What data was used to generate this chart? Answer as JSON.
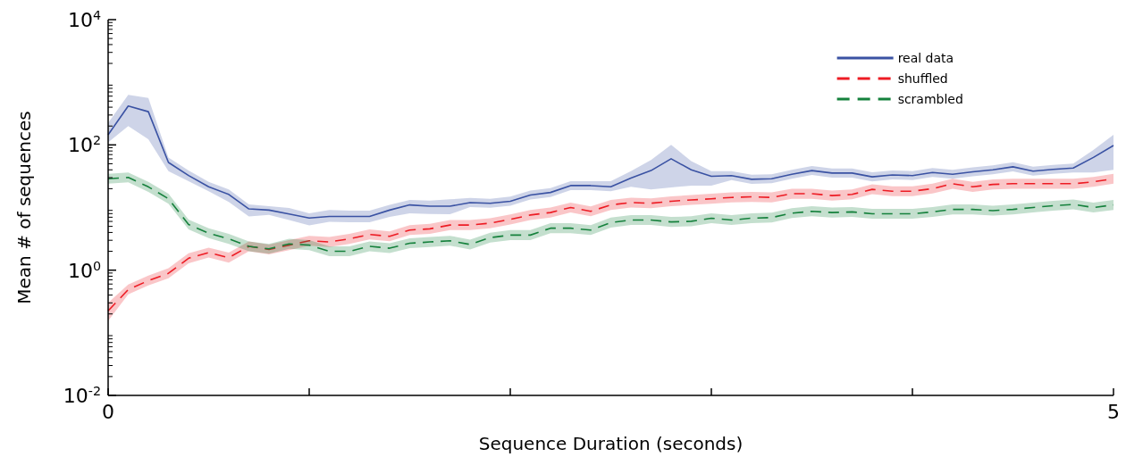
{
  "chart_data": {
    "type": "line",
    "xlabel": "Sequence Duration (seconds)",
    "ylabel": "Mean # of sequences",
    "log": "y",
    "xlim": [
      0,
      5
    ],
    "ylim": [
      0.01,
      10000
    ],
    "xticks": [
      0,
      {
        "value": 1,
        "label": null
      },
      {
        "value": 2,
        "label": null
      },
      {
        "value": 3,
        "label": null
      },
      {
        "value": 4,
        "label": null
      },
      5
    ],
    "yticks": [
      {
        "value": 0.01,
        "label": "10$^{-2}$"
      },
      {
        "value": 1,
        "label": "10$^{0}$"
      },
      {
        "value": 100,
        "label": "10$^{2}$"
      },
      {
        "value": 10000,
        "label": "10$^{4}$"
      }
    ],
    "grid": false,
    "legend": "top right",
    "marker": "none",
    "x": [
      0,
      0.1,
      0.2,
      0.3,
      0.4,
      0.5,
      0.6,
      0.7,
      0.8,
      0.9,
      1,
      1.1,
      1.2,
      1.3,
      1.4,
      1.5,
      1.6,
      1.7,
      1.8,
      1.9,
      2,
      2.1,
      2.2,
      2.3,
      2.4,
      2.5,
      2.6,
      2.7,
      2.8,
      2.9,
      3,
      3.1,
      3.2,
      3.3,
      3.4,
      3.5,
      3.6,
      3.7,
      3.8,
      3.9,
      4,
      4.1,
      4.2,
      4.3,
      4.4,
      4.5,
      4.6,
      4.7,
      4.8,
      4.9,
      5
    ],
    "series": [
      {
        "name": "real data",
        "color": "#3a52a3",
        "line_style": "solid",
        "values": [
          145,
          417,
          339,
          52.5,
          32.4,
          21.4,
          16.2,
          9.5,
          9.1,
          7.9,
          6.8,
          7.2,
          7.2,
          7.2,
          9.1,
          11,
          10.5,
          10.5,
          12,
          11.7,
          12.6,
          15.8,
          17.4,
          22.4,
          22.4,
          21.4,
          29.5,
          38.9,
          60,
          40,
          31.6,
          32.4,
          28.2,
          28.8,
          33.9,
          38.9,
          35.5,
          35.5,
          30.9,
          33.1,
          32.4,
          36.3,
          33.9,
          37.2,
          40,
          44.7,
          38,
          40.7,
          42.7,
          63,
          98
        ],
        "upper": [
          224,
          631,
          562,
          63,
          38.9,
          25.7,
          19.5,
          11.2,
          10.5,
          9.8,
          8.1,
          9.1,
          8.9,
          8.9,
          11,
          13.2,
          12.9,
          13.5,
          14.2,
          13.8,
          14.9,
          18.6,
          20.5,
          26.4,
          26.4,
          26.3,
          38,
          57.5,
          100,
          55,
          38,
          38.2,
          33.3,
          34,
          40,
          45.9,
          41.9,
          41.9,
          36.5,
          39,
          38.2,
          42.8,
          40,
          43.9,
          47.2,
          52.7,
          44.8,
          48,
          50.4,
          83,
          145
        ],
        "lower": [
          110,
          200,
          123,
          38,
          26.3,
          18.2,
          12.3,
          7.2,
          7.6,
          6.3,
          5.2,
          5.9,
          5.8,
          5.8,
          7.1,
          8.1,
          7.9,
          7.8,
          10.2,
          9.9,
          10.7,
          13.4,
          14.7,
          19,
          19,
          18.2,
          21.4,
          19.5,
          20.9,
          22.4,
          22.4,
          27.5,
          23.9,
          24.4,
          28.7,
          33,
          30.1,
          30.1,
          26.2,
          28,
          27.5,
          30.8,
          28.7,
          31.5,
          33.9,
          37.9,
          32.2,
          34.5,
          36.2,
          36.3,
          40
        ]
      },
      {
        "name": "shuffled",
        "color": "#ed1c24",
        "line_style": "dashed",
        "values": [
          0.224,
          0.49,
          0.68,
          0.89,
          1.55,
          1.91,
          1.58,
          2.4,
          2.14,
          2.51,
          2.95,
          2.82,
          3.16,
          3.72,
          3.47,
          4.37,
          4.57,
          5.25,
          5.25,
          5.62,
          6.46,
          7.59,
          8.32,
          10,
          8.7,
          11,
          12,
          11.7,
          12.6,
          13.2,
          13.8,
          14.5,
          14.8,
          14.5,
          16.6,
          16.6,
          15.5,
          16.2,
          19.5,
          18.2,
          18.2,
          20,
          24,
          21.4,
          23.4,
          24,
          24,
          24,
          24,
          25.7,
          28.8
        ],
        "upper": [
          0.3,
          0.59,
          0.82,
          1.07,
          1.86,
          2.29,
          1.9,
          2.88,
          2.57,
          3.01,
          3.54,
          3.38,
          3.79,
          4.46,
          4.16,
          5.24,
          5.48,
          6.3,
          6.3,
          6.74,
          7.75,
          9.11,
          9.98,
          12,
          10.4,
          13.2,
          14.4,
          14,
          15.1,
          15.8,
          16.6,
          17.4,
          17.8,
          17.4,
          19.9,
          19.9,
          18.6,
          19.4,
          23.4,
          21.8,
          21.8,
          24,
          28.8,
          25.7,
          28.1,
          28.8,
          28.8,
          28.8,
          28.8,
          30.8,
          34.6
        ],
        "lower": [
          0.155,
          0.41,
          0.57,
          0.74,
          1.29,
          1.59,
          1.32,
          2,
          1.78,
          2.09,
          2.46,
          2.35,
          2.63,
          3.1,
          2.89,
          3.64,
          3.81,
          4.38,
          4.38,
          4.68,
          5.38,
          6.33,
          6.93,
          8.33,
          7.25,
          9.17,
          10,
          9.75,
          10.5,
          11,
          11.5,
          12.1,
          12.3,
          12.1,
          13.8,
          13.8,
          12.9,
          13.5,
          16.3,
          15.2,
          15.2,
          16.7,
          20,
          17.8,
          19.5,
          20,
          20,
          20,
          20,
          21.4,
          24
        ]
      },
      {
        "name": "scrambled",
        "color": "#15813c",
        "line_style": "dashed",
        "values": [
          28.8,
          30.2,
          21.4,
          13.8,
          5.37,
          3.89,
          3.16,
          2.4,
          2.19,
          2.63,
          2.51,
          2,
          2,
          2.4,
          2.24,
          2.69,
          2.82,
          2.95,
          2.57,
          3.31,
          3.63,
          3.63,
          4.68,
          4.68,
          4.37,
          5.75,
          6.31,
          6.31,
          5.89,
          6.03,
          6.76,
          6.31,
          6.76,
          6.92,
          8.13,
          8.71,
          8.32,
          8.51,
          7.94,
          7.94,
          7.94,
          8.51,
          9.33,
          9.33,
          8.91,
          9.33,
          10,
          10.7,
          11.2,
          10,
          11
        ],
        "upper": [
          34.6,
          36.2,
          25.7,
          16.6,
          6.44,
          4.67,
          3.79,
          2.88,
          2.63,
          3.16,
          3.01,
          2.4,
          2.4,
          2.88,
          2.69,
          3.23,
          3.38,
          3.54,
          3.08,
          3.97,
          4.36,
          4.36,
          5.62,
          5.62,
          5.24,
          6.9,
          7.57,
          7.57,
          7.07,
          7.24,
          8.11,
          7.57,
          8.11,
          8.3,
          9.76,
          10.5,
          9.98,
          10.2,
          9.53,
          9.53,
          9.53,
          10.2,
          11.2,
          11.2,
          10.7,
          11.2,
          12,
          12.8,
          13.4,
          12,
          13.2
        ],
        "lower": [
          24,
          25.2,
          17.8,
          11.5,
          4.48,
          3.24,
          2.63,
          2,
          1.83,
          2.19,
          2.09,
          1.67,
          1.67,
          2,
          1.87,
          2.24,
          2.35,
          2.46,
          2.14,
          2.76,
          3.03,
          3.03,
          3.9,
          3.9,
          3.64,
          4.79,
          5.26,
          5.26,
          4.91,
          5.03,
          5.63,
          5.26,
          5.63,
          5.77,
          6.78,
          7.26,
          6.93,
          7.09,
          6.62,
          6.62,
          6.62,
          7.09,
          7.78,
          7.78,
          7.43,
          7.78,
          8.33,
          8.92,
          9.33,
          8.33,
          9.17
        ]
      }
    ]
  }
}
